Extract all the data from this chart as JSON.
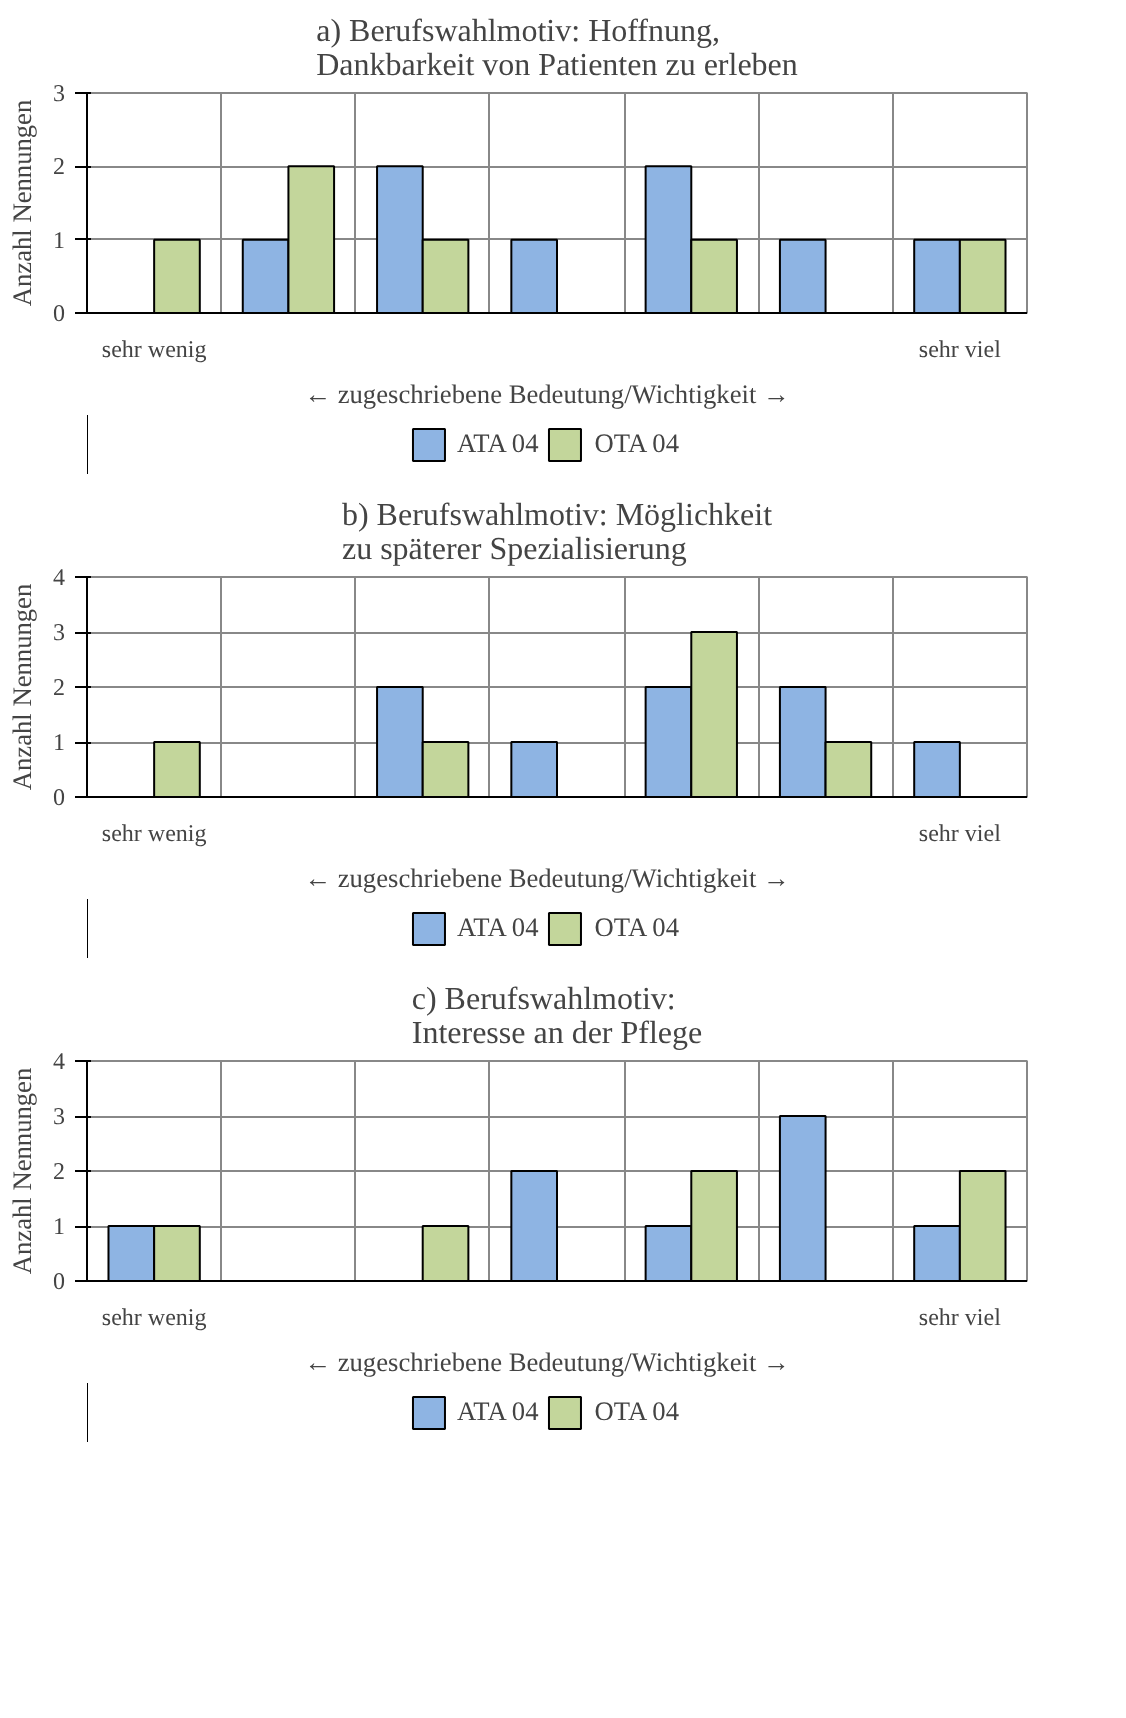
{
  "chart_data": [
    {
      "type": "bar",
      "title": "a) Berufswahlmotiv: Hoffnung,\nDankbarkeit von Patienten zu erleben",
      "xlabel": "←  zugeschriebene  Bedeutung/Wichtigkeit  →",
      "ylabel": "Anzahl Nennungen",
      "categories": [
        "sehr wenig",
        null,
        null,
        null,
        null,
        null,
        "sehr viel"
      ],
      "ylim": [
        0,
        3
      ],
      "yticks": [
        0,
        1,
        2,
        3
      ],
      "grid": true,
      "legend": "bottom",
      "series": [
        {
          "name": "ATA 04",
          "color": "#8eb4e3",
          "values": [
            null,
            1,
            2,
            1,
            2,
            1,
            1
          ]
        },
        {
          "name": "OTA 04",
          "color": "#c3d69b",
          "values": [
            1,
            2,
            1,
            null,
            1,
            null,
            1
          ]
        }
      ]
    },
    {
      "type": "bar",
      "title": "b) Berufswahlmotiv: Möglichkeit\nzu späterer Spezialisierung",
      "xlabel": "←  zugeschriebene  Bedeutung/Wichtigkeit  →",
      "ylabel": "Anzahl Nennungen",
      "categories": [
        "sehr wenig",
        null,
        null,
        null,
        null,
        null,
        "sehr viel"
      ],
      "ylim": [
        0,
        4
      ],
      "yticks": [
        0,
        1,
        2,
        3,
        4
      ],
      "grid": true,
      "legend": "bottom",
      "series": [
        {
          "name": "ATA 04",
          "color": "#8eb4e3",
          "values": [
            null,
            null,
            2,
            1,
            2,
            2,
            1
          ]
        },
        {
          "name": "OTA 04",
          "color": "#c3d69b",
          "values": [
            1,
            null,
            1,
            null,
            3,
            1,
            null
          ]
        }
      ]
    },
    {
      "type": "bar",
      "title": "c) Berufswahlmotiv:\nInteresse an der Pflege",
      "xlabel": "←  zugeschriebene  Bedeutung/Wichtigkeit  →",
      "ylabel": "Anzahl Nennungen",
      "categories": [
        "sehr wenig",
        null,
        null,
        null,
        null,
        null,
        "sehr viel"
      ],
      "ylim": [
        0,
        4
      ],
      "yticks": [
        0,
        1,
        2,
        3,
        4
      ],
      "grid": true,
      "legend": "bottom",
      "series": [
        {
          "name": "ATA 04",
          "color": "#8eb4e3",
          "values": [
            1,
            null,
            null,
            2,
            1,
            3,
            1
          ]
        },
        {
          "name": "OTA 04",
          "color": "#c3d69b",
          "values": [
            1,
            null,
            1,
            null,
            2,
            null,
            2
          ]
        }
      ]
    }
  ]
}
